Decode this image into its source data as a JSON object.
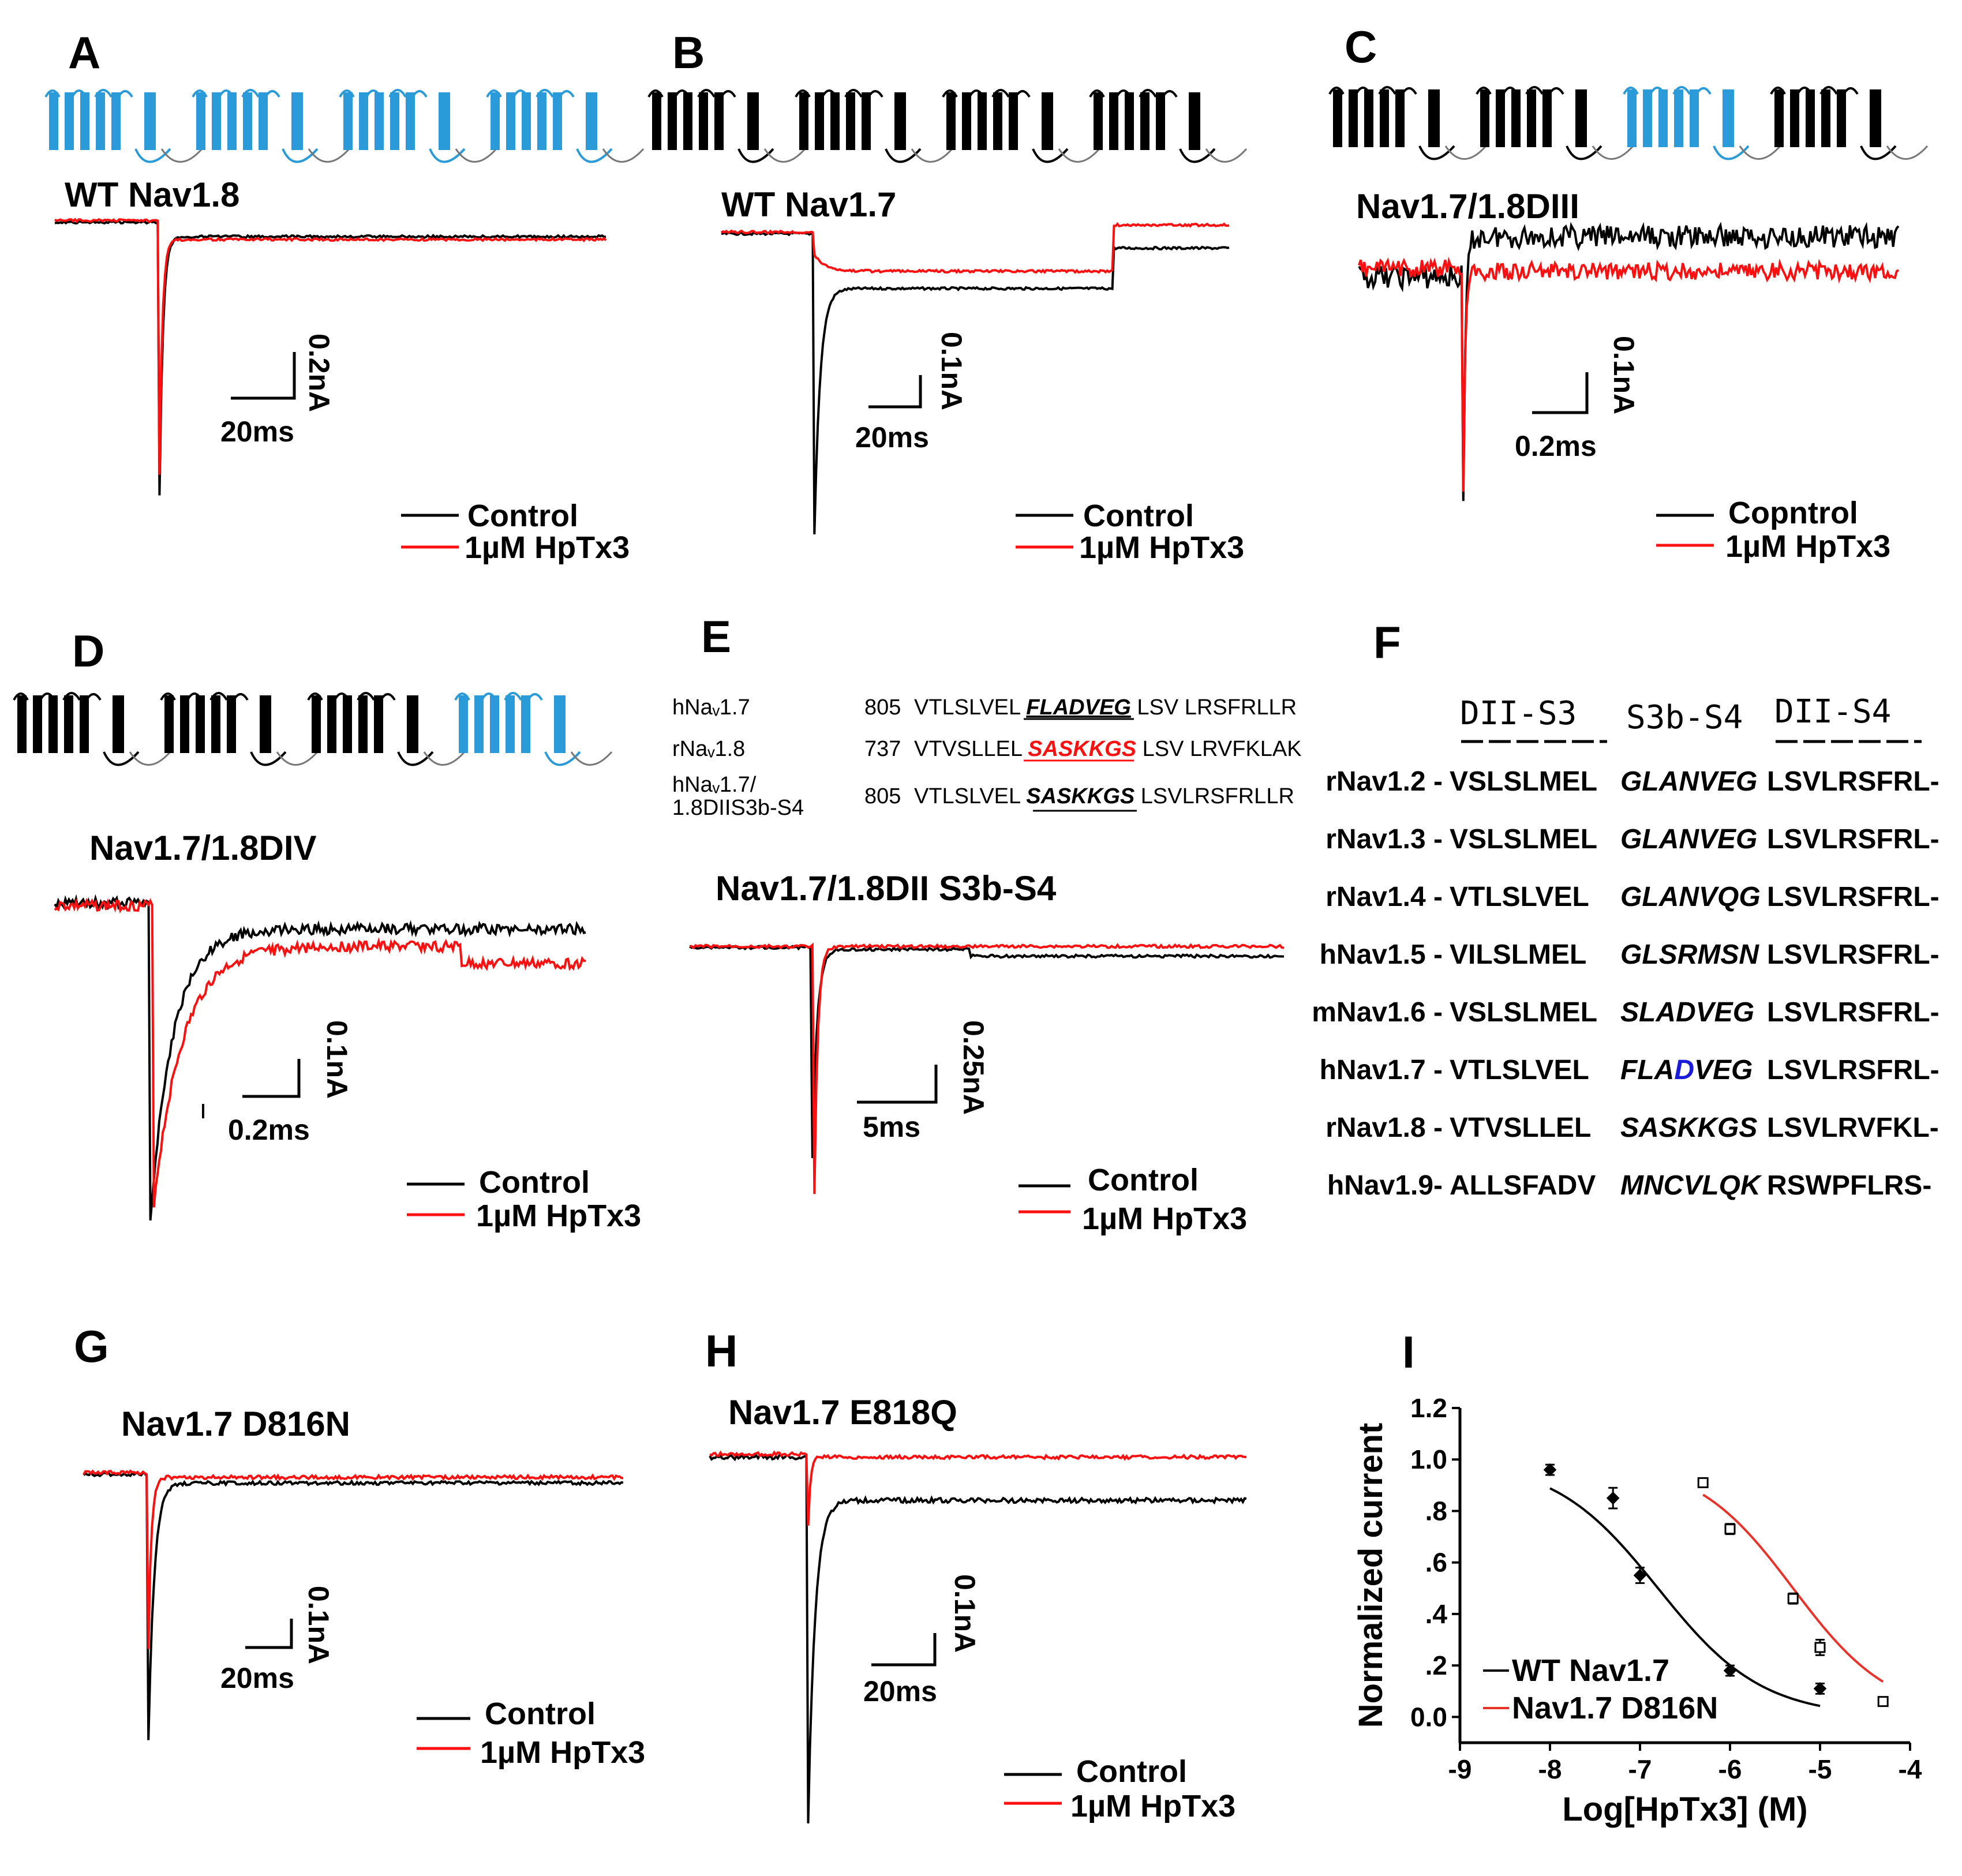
{
  "colors": {
    "control": "#000000",
    "hptx3": "#ff1010",
    "blue_domain": "#2a9ad8",
    "black_domain": "#000000",
    "d_highlight": "#1a1adb"
  },
  "panels": {
    "A": {
      "letter": "A",
      "title": "WT Nav1.8",
      "scale_y": "0.2nA",
      "scale_x": "20ms",
      "legend_control": "Control",
      "legend_hptx3": "1µM HpTx3",
      "channel_blocks": [
        "blue",
        "blue",
        "blue",
        "blue"
      ]
    },
    "B": {
      "letter": "B",
      "title": "WT Nav1.7",
      "scale_y": "0.1nA",
      "scale_x": "20ms",
      "legend_control": "Control",
      "legend_hptx3": "1µM HpTx3",
      "channel_blocks": [
        "black",
        "black",
        "black",
        "black"
      ]
    },
    "C": {
      "letter": "C",
      "title": "Nav1.7/1.8DIII",
      "scale_y": "0.1nA",
      "scale_x": "0.2ms",
      "legend_control": "Copntrol",
      "legend_hptx3": "1µM HpTx3",
      "channel_blocks": [
        "black",
        "black",
        "blue",
        "black"
      ]
    },
    "D": {
      "letter": "D",
      "title": "Nav1.7/1.8DIV",
      "scale_y": "0.1nA",
      "scale_x": "0.2ms",
      "legend_control": "Control",
      "legend_hptx3": "1µM HpTx3",
      "channel_blocks": [
        "black",
        "black",
        "black",
        "blue"
      ]
    },
    "E": {
      "letter": "E",
      "title": "Nav1.7/1.8DII S3b-S4",
      "scale_y": "0.25nA",
      "scale_x": "5ms",
      "legend_control": "Control",
      "legend_hptx3": "1µM HpTx3",
      "alignment": [
        {
          "name": "hNaᵥ1.7",
          "num": "805",
          "pre": "VTLSLVEL",
          "motif": "FLADVEG",
          "post": "LSV LRSFRLLR",
          "motif_color": "black"
        },
        {
          "name": "rNaᵥ1.8",
          "num": "737",
          "pre": "VTVSLLEL",
          "motif": "SASKKGS",
          "post": "LSV LRVFKLAK",
          "motif_color": "red"
        },
        {
          "name": "hNaᵥ1.7/",
          "name2": "1.8DIIS3b-S4",
          "num": "805",
          "pre": "VTLSLVEL",
          "motif": "SASKKGS",
          "post": "LSVLRSFRLLR",
          "motif_color": "black"
        }
      ]
    },
    "F": {
      "letter": "F",
      "headers": [
        "DII-S3",
        "S3b-S4",
        "DII-S4"
      ],
      "rows": [
        {
          "name": "rNav1.2 -",
          "s3": "VSLSLMEL",
          "s3b": "GLANVEG",
          "s4": "LSVLRSFRL-"
        },
        {
          "name": "rNav1.3 -",
          "s3": "VSLSLMEL",
          "s3b": "GLANVEG",
          "s4": "LSVLRSFRL-"
        },
        {
          "name": "rNav1.4 -",
          "s3": "VTLSLVEL",
          "s3b": "GLANVQG",
          "s4": "LSVLRSFRL-"
        },
        {
          "name": "hNav1.5 -",
          "s3": "VILSLMEL",
          "s3b": "GLSRMSN",
          "s4": "LSVLRSFRL-"
        },
        {
          "name": "mNav1.6 -",
          "s3": "VSLSLMEL",
          "s3b": "SLADVEG",
          "s4": "LSVLRSFRL-"
        },
        {
          "name": "hNav1.7 -",
          "s3": "VTLSLVEL",
          "s3b_pre": "FLA",
          "s3b_hl": "D",
          "s3b_post": "VEG",
          "s4": "LSVLRSFRL-"
        },
        {
          "name": "rNav1.8 -",
          "s3": "VTVSLLEL",
          "s3b": "SASKKGS",
          "s4": "LSVLRVFKL-"
        },
        {
          "name": "hNav1.9-",
          "s3": "ALLSFADV",
          "s3b": "MNCVLQK",
          "s4": "RSWPFLRS-"
        }
      ]
    },
    "G": {
      "letter": "G",
      "title": "Nav1.7 D816N",
      "scale_y": "0.1nA",
      "scale_x": "20ms",
      "legend_control": "Control",
      "legend_hptx3": "1µM HpTx3"
    },
    "H": {
      "letter": "H",
      "title": "Nav1.7 E818Q",
      "scale_y": "0.1nA",
      "scale_x": "20ms",
      "legend_control": "Control",
      "legend_hptx3": "1µM HpTx3"
    },
    "I": {
      "letter": "I"
    }
  },
  "chart_data": {
    "type": "scatter",
    "panel": "I",
    "xlabel": "Log[HpTx3] (M)",
    "ylabel": "Normalized current",
    "xlim": [
      -9,
      -4
    ],
    "ylim": [
      -0.1,
      1.2
    ],
    "xticks": [
      -9,
      -8,
      -7,
      -6,
      -5,
      -4
    ],
    "xtick_labels": [
      "-9",
      "-8",
      "-7",
      "-6",
      "-5",
      "-4"
    ],
    "yticks": [
      0.0,
      0.2,
      0.4,
      0.6,
      0.8,
      1.0,
      1.2
    ],
    "ytick_labels": [
      "0.0",
      ".2",
      ".4",
      ".6",
      ".8",
      "1.0",
      "1.2"
    ],
    "legend_location": "bottom-left",
    "series": [
      {
        "name": "WT Nav1.7",
        "color": "#000000",
        "marker": "filled",
        "x": [
          -8,
          -7.3,
          -7,
          -6,
          -5
        ],
        "y": [
          0.96,
          0.85,
          0.55,
          0.18,
          0.11
        ],
        "err": [
          0.02,
          0.04,
          0.03,
          0.02,
          0.02
        ],
        "fit": {
          "ic50_log": -6.8,
          "hill": 0.75,
          "x_range": [
            -8,
            -5
          ]
        }
      },
      {
        "name": "Nav1.7 D816N",
        "color": "#e8322a",
        "marker": "open",
        "x": [
          -6.3,
          -6,
          -5.3,
          -5,
          -4.3
        ],
        "y": [
          0.91,
          0.73,
          0.46,
          0.27,
          0.06
        ],
        "err": [
          0.01,
          0.02,
          0.02,
          0.03,
          0.01
        ],
        "fit": {
          "ic50_log": -5.3,
          "hill": 0.8,
          "x_range": [
            -6.3,
            -4.3
          ]
        }
      }
    ]
  }
}
